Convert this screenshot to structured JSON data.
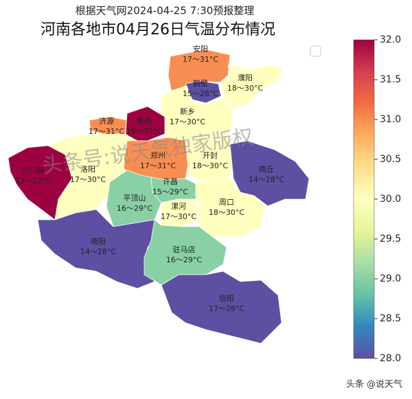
{
  "subtitle": "根据天气网2024-04-25 7:30预报整理",
  "title": "河南各地市04月26日气温分布情况",
  "watermark": "头条号:说天气独家版权",
  "footer": "头条 @说天气",
  "regions": [
    {
      "name": "安阳",
      "value": 31,
      "value_label": "17～31°C"
    },
    {
      "name": "鹤壁",
      "value": 28,
      "value_label": "15～28°C"
    },
    {
      "name": "濮阳",
      "value": 30,
      "value_label": "18～30°C"
    },
    {
      "name": "新乡",
      "value": 30,
      "value_label": "17～30°C"
    },
    {
      "name": "济源",
      "value": 31,
      "value_label": "17～31°C"
    },
    {
      "name": "焦作",
      "value": 32,
      "value_label": "18～32°C"
    },
    {
      "name": "三门峡",
      "value": 32,
      "value_label": "13～32°C"
    },
    {
      "name": "洛阳",
      "value": 30,
      "value_label": "17～30°C"
    },
    {
      "name": "郑州",
      "value": 31,
      "value_label": "17～31°C"
    },
    {
      "name": "开封",
      "value": 30,
      "value_label": "18～30°C"
    },
    {
      "name": "商丘",
      "value": 28,
      "value_label": "14～28°C"
    },
    {
      "name": "许昌",
      "value": 29,
      "value_label": "15～29°C"
    },
    {
      "name": "平顶山",
      "value": 29,
      "value_label": "16～29°C"
    },
    {
      "name": "漯河",
      "value": 30,
      "value_label": "17～30°C"
    },
    {
      "name": "周口",
      "value": 30,
      "value_label": "18～30°C"
    },
    {
      "name": "南阳",
      "value": 28,
      "value_label": "14～28°C"
    },
    {
      "name": "驻马店",
      "value": 29,
      "value_label": "16～29°C"
    },
    {
      "name": "信阳",
      "value": 28,
      "value_label": "17～28°C"
    }
  ],
  "colorbar": {
    "lim": [
      28,
      32
    ],
    "ticks": [
      {
        "value": 28,
        "label": "28.0"
      },
      {
        "value": 28.5,
        "label": "28.5"
      },
      {
        "value": 29,
        "label": "29.0"
      },
      {
        "value": 29.5,
        "label": "29.5"
      },
      {
        "value": 30,
        "label": "30.0"
      },
      {
        "value": 30.5,
        "label": "30.5"
      },
      {
        "value": 31,
        "label": "31.0"
      },
      {
        "value": 31.5,
        "label": "31.5"
      },
      {
        "value": 32,
        "label": "32.0"
      }
    ]
  }
}
